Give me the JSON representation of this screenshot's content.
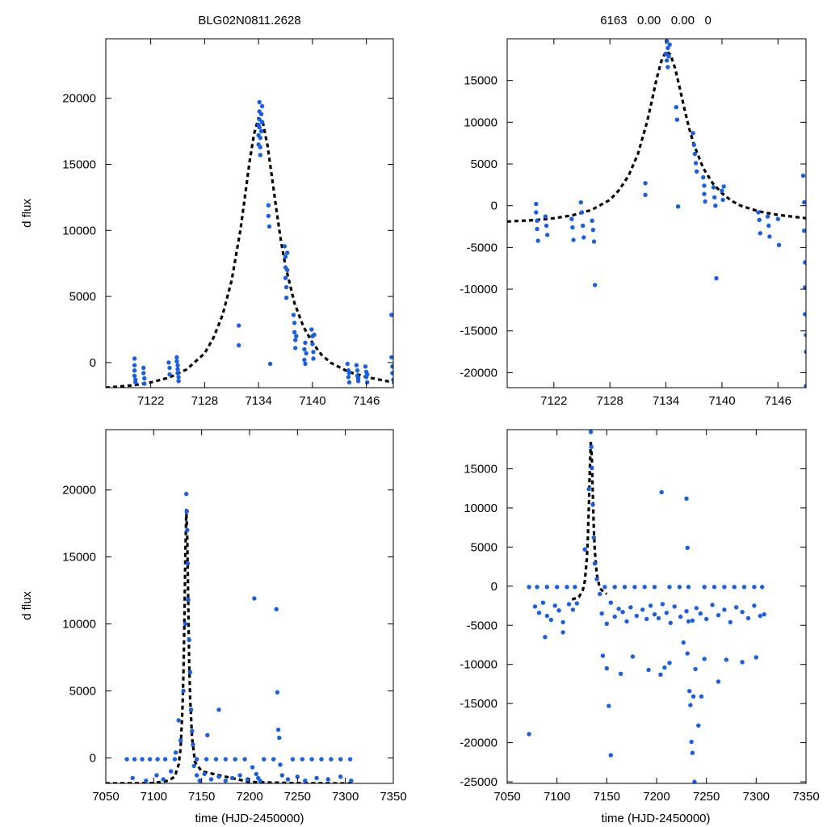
{
  "colors": {
    "data_points": "#1a5fe0",
    "model_curve": "#000000",
    "frame": "#000000",
    "background": "#ffffff"
  },
  "chart_data": [
    {
      "id": "top-left",
      "type": "scatter",
      "title": "BLG02N0811.2628",
      "xlabel": "",
      "ylabel": "d flux",
      "xlim": [
        7117,
        7149
      ],
      "ylim": [
        -1900,
        24500
      ],
      "xticks": [
        7122,
        7128,
        7134,
        7140,
        7146
      ],
      "yticks": [
        0,
        5000,
        10000,
        15000,
        20000
      ],
      "series": [
        {
          "name": "model",
          "kind": "line",
          "style": "dashed",
          "x": [
            7117,
            7120,
            7122,
            7124,
            7126,
            7128,
            7129,
            7130,
            7131,
            7132,
            7132.5,
            7133,
            7133.5,
            7134,
            7134.5,
            7135,
            7135.5,
            7136,
            7136.5,
            7137,
            7138,
            7139,
            7140,
            7141,
            7142,
            7144,
            7146,
            7149
          ],
          "y": [
            -1900,
            -1720,
            -1500,
            -1150,
            -520,
            700,
            1900,
            3600,
            6200,
            10100,
            12600,
            15200,
            17300,
            18500,
            18100,
            16400,
            14000,
            11500,
            9200,
            7300,
            4500,
            2700,
            1500,
            600,
            0,
            -700,
            -1100,
            -1500
          ]
        },
        {
          "name": "observations",
          "kind": "points",
          "x": [
            7120.2,
            7120.2,
            7120.2,
            7120.2,
            7120.3,
            7120.3,
            7121.2,
            7121.2,
            7121.3,
            7121.3,
            7124,
            7124.1,
            7124.1,
            7124.9,
            7124.9,
            7125,
            7125,
            7125,
            7125.1,
            7125.1,
            7131.8,
            7131.8,
            7134,
            7134,
            7134,
            7134.1,
            7134.1,
            7134.1,
            7134.1,
            7134.2,
            7134.2,
            7134.2,
            7134.3,
            7134.3,
            7134.4,
            7134.4,
            7135.1,
            7135.1,
            7135.2,
            7135.3,
            7136.9,
            7137,
            7137,
            7137,
            7137.1,
            7137.1,
            7137.2,
            7137.2,
            7137.9,
            7138,
            7138,
            7138.1,
            7138.1,
            7138.2,
            7139.1,
            7139.1,
            7139.2,
            7139.2,
            7139.3,
            7139.9,
            7140,
            7140,
            7140.1,
            7140.1,
            7140.2,
            7143.9,
            7144,
            7144,
            7144.1,
            7144.1,
            7144.9,
            7145,
            7145,
            7145.1,
            7145.1,
            7145.9,
            7146,
            7146,
            7146.1,
            7146.1,
            7148.8,
            7148.8,
            7148.9,
            7148.9,
            7149
          ],
          "y": [
            300,
            -200,
            -600,
            -1000,
            -1300,
            -1500,
            -400,
            -800,
            -1200,
            -1600,
            0,
            -400,
            -900,
            400,
            100,
            -200,
            -500,
            -800,
            -1100,
            -1400,
            2800,
            1300,
            18000,
            17200,
            16500,
            19700,
            19000,
            18400,
            17800,
            17000,
            16300,
            15700,
            18800,
            17500,
            19400,
            18200,
            11900,
            11100,
            10300,
            -100,
            8800,
            8000,
            7200,
            6400,
            5700,
            4900,
            8300,
            7000,
            3600,
            3000,
            2300,
            1700,
            1100,
            2000,
            1000,
            200,
            1500,
            -100,
            700,
            2500,
            2000,
            1400,
            800,
            300,
            2100,
            -100,
            -600,
            -1100,
            -1500,
            -800,
            -200,
            -600,
            -1000,
            -1400,
            -1200,
            -300,
            -700,
            -1100,
            -1500,
            -900,
            3600,
            400,
            -300,
            -800,
            -1300
          ]
        }
      ]
    },
    {
      "id": "top-right",
      "type": "scatter",
      "title": "6163   0.00   0.00   0",
      "xlabel": "",
      "ylabel": "",
      "xlim": [
        7117,
        7149
      ],
      "ylim": [
        -21800,
        20000
      ],
      "xticks": [
        7122,
        7128,
        7134,
        7140,
        7146
      ],
      "yticks": [
        -20000,
        -15000,
        -10000,
        -5000,
        0,
        5000,
        10000,
        15000
      ],
      "series": [
        {
          "name": "model",
          "kind": "line",
          "style": "dashed",
          "x": [
            7117,
            7120,
            7122,
            7124,
            7126,
            7128,
            7129,
            7130,
            7131,
            7132,
            7132.5,
            7133,
            7133.5,
            7134,
            7134.5,
            7135,
            7135.5,
            7136,
            7136.5,
            7137,
            7138,
            7139,
            7140,
            7141,
            7142,
            7144,
            7146,
            7149
          ],
          "y": [
            -1900,
            -1720,
            -1500,
            -1150,
            -520,
            700,
            1900,
            3600,
            6200,
            10100,
            12600,
            15200,
            17300,
            18500,
            18100,
            16400,
            14000,
            11500,
            9200,
            7300,
            4500,
            2700,
            1500,
            600,
            0,
            -700,
            -1100,
            -1500
          ]
        },
        {
          "name": "observations",
          "kind": "points",
          "x": [
            7120.1,
            7120.1,
            7120.2,
            7120.2,
            7120.3,
            7121.1,
            7121.2,
            7121.3,
            7123.9,
            7124,
            7124.1,
            7124.9,
            7125,
            7125.1,
            7125.2,
            7126.1,
            7126.2,
            7126.3,
            7126.4,
            7131.8,
            7131.8,
            7134,
            7134.1,
            7134.1,
            7134.2,
            7134.2,
            7134.3,
            7134.4,
            7135.1,
            7135.2,
            7135.3,
            7136.9,
            7137,
            7137.1,
            7137.2,
            7137.3,
            7138,
            7138.1,
            7138.1,
            7138.2,
            7139.1,
            7139.2,
            7139.3,
            7139.4,
            7140,
            7140.1,
            7140.2,
            7143.9,
            7144,
            7144.1,
            7144.9,
            7145,
            7145.1,
            7146,
            7146.1,
            7148.7,
            7148.8,
            7148.8,
            7148.9,
            7148.9,
            7148.9,
            7149,
            7149,
            7149
          ],
          "y": [
            200,
            -800,
            -1800,
            -2800,
            -4200,
            -1300,
            -2400,
            -3500,
            -1600,
            -2600,
            -4100,
            400,
            -800,
            -2400,
            -3800,
            -1800,
            -2900,
            -4300,
            -9500,
            2700,
            1300,
            18200,
            19700,
            17400,
            16600,
            18900,
            17900,
            19300,
            11800,
            10300,
            -100,
            8700,
            7300,
            6200,
            5100,
            4100,
            3400,
            2400,
            1400,
            500,
            2200,
            1000,
            0,
            -8700,
            1800,
            700,
            2300,
            -800,
            -1700,
            -3300,
            -1300,
            -2400,
            -3700,
            -1600,
            -4700,
            3600,
            400,
            -3000,
            -6800,
            -9800,
            -13000,
            -15500,
            -17500,
            -21600
          ]
        }
      ]
    },
    {
      "id": "bottom-left",
      "type": "scatter",
      "title": "",
      "xlabel": "time (HJD-2450000)",
      "ylabel": "d flux",
      "xlim": [
        7050,
        7350
      ],
      "ylim": [
        -1900,
        24500
      ],
      "xticks": [
        7050,
        7100,
        7150,
        7200,
        7250,
        7300,
        7350
      ],
      "yticks": [
        0,
        5000,
        10000,
        15000,
        20000
      ],
      "series": [
        {
          "name": "model",
          "kind": "line",
          "style": "dashed",
          "x": [
            7050,
            7100,
            7115,
            7122,
            7126,
            7128,
            7130,
            7131,
            7132,
            7133,
            7134,
            7135,
            7136,
            7137,
            7138,
            7140,
            7143,
            7150,
            7200,
            7250,
            7300
          ],
          "y": [
            -1900,
            -1880,
            -1700,
            -1400,
            -500,
            700,
            3600,
            6200,
            10100,
            15200,
            18500,
            16400,
            11500,
            7300,
            4500,
            1500,
            -300,
            -1000,
            -1800,
            -1880,
            -1900
          ],
          "x_end": 7309
        },
        {
          "name": "observations",
          "kind": "points",
          "x": [
            7072,
            7080,
            7088,
            7096,
            7104,
            7112,
            7122,
            7145,
            7155,
            7165,
            7175,
            7185,
            7195,
            7215,
            7225,
            7245,
            7255,
            7265,
            7275,
            7285,
            7295,
            7305,
            7078,
            7092,
            7103,
            7110,
            7118,
            7123,
            7126,
            7128,
            7131,
            7133,
            7134,
            7134.5,
            7135,
            7135.5,
            7136,
            7137,
            7138,
            7139,
            7140,
            7141,
            7142,
            7145,
            7148,
            7153,
            7160,
            7168,
            7175,
            7182,
            7190,
            7198,
            7203,
            7205,
            7207,
            7209,
            7211,
            7228,
            7229,
            7230,
            7231,
            7232,
            7234,
            7240,
            7250,
            7258,
            7270,
            7282,
            7295,
            7306,
            7156,
            7168
          ],
          "y": [
            -100,
            -100,
            -100,
            -100,
            -100,
            -100,
            -100,
            -100,
            -100,
            -100,
            -100,
            -100,
            -100,
            -100,
            -100,
            -100,
            -100,
            -100,
            -100,
            -100,
            -100,
            -100,
            -1500,
            -1700,
            -1300,
            -1600,
            -1000,
            400,
            2800,
            1300,
            5000,
            10000,
            19700,
            18400,
            17000,
            14500,
            11800,
            8800,
            6400,
            3600,
            2000,
            1000,
            -600,
            -1300,
            -1700,
            -1200,
            -1600,
            -1400,
            -1700,
            -1500,
            -1300,
            -1600,
            -700,
            11900,
            -1200,
            -1500,
            -1700,
            11100,
            4900,
            2100,
            1500,
            -500,
            -1300,
            -1600,
            -1400,
            -1700,
            -1500,
            -1600,
            -1400,
            -1700,
            1700,
            3600
          ]
        }
      ]
    },
    {
      "id": "bottom-right",
      "type": "scatter",
      "title": "",
      "xlabel": "time (HJD-2450000)",
      "ylabel": "",
      "xlim": [
        7050,
        7350
      ],
      "ylim": [
        -25200,
        20000
      ],
      "xticks": [
        7050,
        7100,
        7150,
        7200,
        7250,
        7300,
        7350
      ],
      "yticks": [
        -25000,
        -20000,
        -15000,
        -10000,
        -5000,
        0,
        5000,
        10000,
        15000
      ],
      "series": [
        {
          "name": "model",
          "kind": "line",
          "style": "dashed",
          "x": [
            7115,
            7122,
            7126,
            7128,
            7130,
            7131,
            7132,
            7133,
            7134,
            7135,
            7136,
            7137,
            7138,
            7140,
            7143,
            7150
          ],
          "y": [
            -1700,
            -1400,
            -500,
            700,
            3600,
            6200,
            10100,
            15200,
            18500,
            16400,
            11500,
            7300,
            4500,
            1500,
            -300,
            -1000
          ]
        },
        {
          "name": "observations",
          "kind": "points",
          "x": [
            7072,
            7080,
            7090,
            7100,
            7110,
            7118,
            7148,
            7158,
            7168,
            7178,
            7188,
            7198,
            7213,
            7223,
            7232,
            7248,
            7258,
            7268,
            7278,
            7288,
            7298,
            7306,
            7078,
            7082,
            7086,
            7090,
            7094,
            7098,
            7102,
            7106,
            7112,
            7116,
            7120,
            7145,
            7150,
            7154,
            7158,
            7162,
            7166,
            7170,
            7174,
            7180,
            7186,
            7190,
            7194,
            7198,
            7202,
            7206,
            7210,
            7214,
            7218,
            7224,
            7230,
            7236,
            7240,
            7244,
            7250,
            7256,
            7262,
            7268,
            7274,
            7280,
            7286,
            7292,
            7298,
            7304,
            7308,
            7088,
            7106,
            7128,
            7132,
            7134,
            7134.5,
            7135,
            7136,
            7137,
            7138,
            7140,
            7143,
            7146,
            7150,
            7152,
            7154,
            7164,
            7176,
            7192,
            7204,
            7208,
            7213,
            7227,
            7231,
            7233,
            7235,
            7237,
            7239,
            7248,
            7262,
            7270,
            7286,
            7300,
            7072,
            7205,
            7230,
            7231,
            7232,
            7234,
            7236,
            7238,
            7242,
            7245
          ],
          "y": [
            -100,
            -100,
            -100,
            -100,
            -100,
            -100,
            -100,
            -100,
            -100,
            -100,
            -100,
            -100,
            -100,
            -100,
            -100,
            -100,
            -100,
            -100,
            -100,
            -100,
            -100,
            -100,
            -2600,
            -3400,
            -2100,
            -3800,
            -4300,
            -2500,
            -3100,
            -4600,
            -2300,
            -3000,
            -2200,
            -3500,
            -4800,
            -2100,
            -3900,
            -2900,
            -3300,
            -4500,
            -2700,
            -3800,
            -3000,
            -4200,
            -2500,
            -3600,
            -4100,
            -2300,
            -3400,
            -4700,
            -2600,
            -3900,
            -3200,
            -4400,
            -2800,
            -3500,
            -4200,
            -2400,
            -3700,
            -3000,
            -4600,
            -2700,
            -3300,
            -4100,
            -2500,
            -3800,
            -3600,
            -6500,
            -5900,
            4700,
            12400,
            19700,
            17800,
            15100,
            10400,
            6200,
            2900,
            900,
            -1000,
            -8900,
            -10500,
            -15300,
            -21600,
            -11200,
            -9000,
            -10700,
            -11300,
            -10400,
            -9800,
            -7200,
            -8600,
            -13400,
            -19900,
            -14100,
            -10600,
            -9300,
            -12200,
            -9400,
            -9700,
            -9100,
            -18900,
            12000,
            11200,
            4900,
            -4500,
            -15200,
            -21300,
            -25000,
            -17800,
            -14100
          ]
        }
      ]
    }
  ]
}
